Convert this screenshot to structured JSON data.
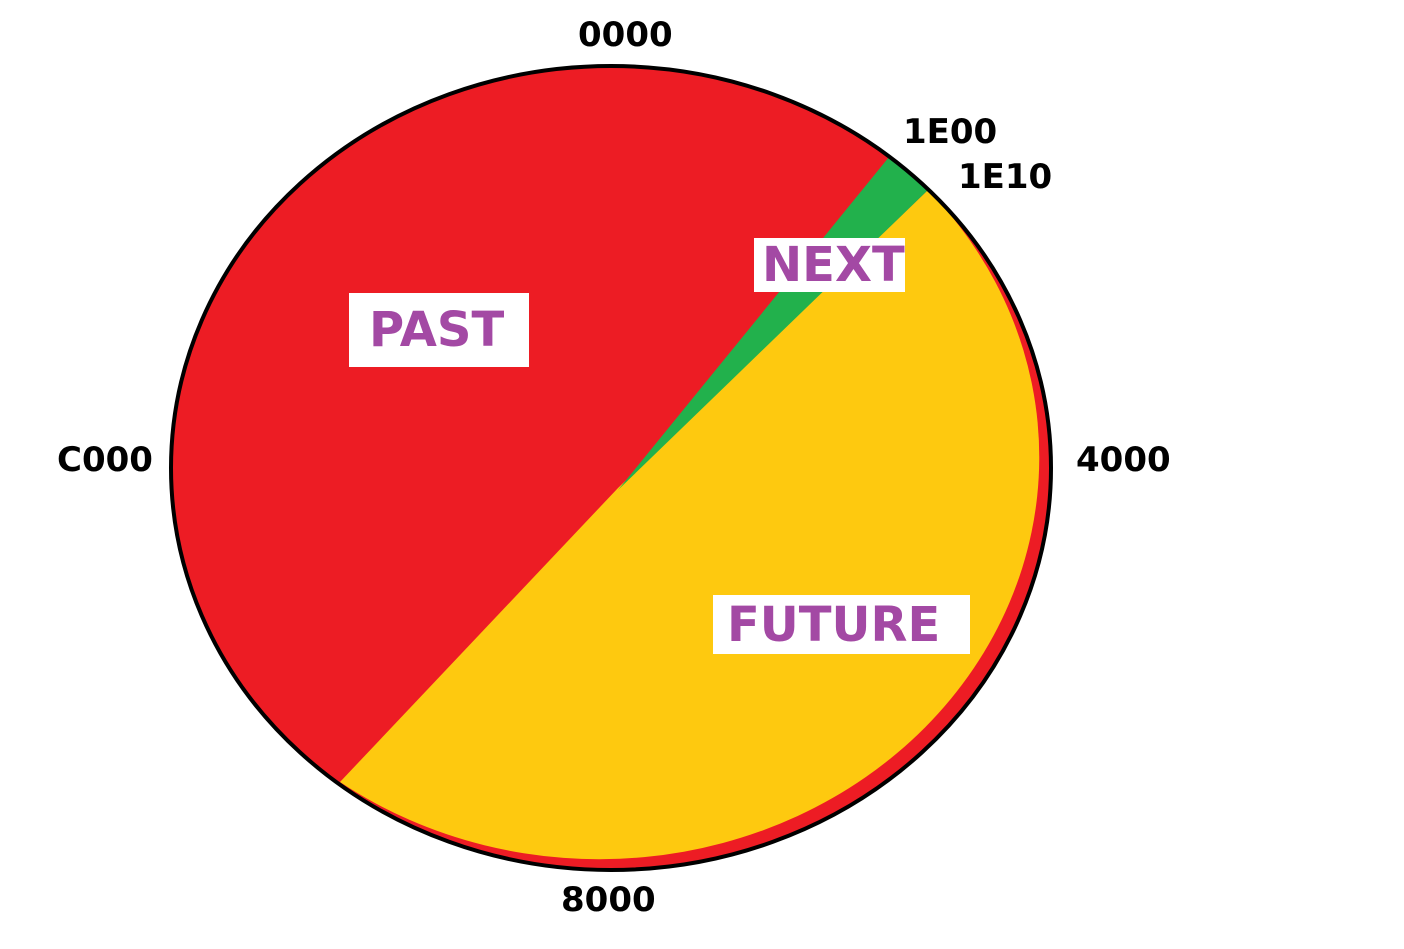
{
  "ticks": {
    "top": "0000",
    "next_start": "1E00",
    "next_end": "1E10",
    "right": "4000",
    "bottom": "8000",
    "left": "C000"
  },
  "regions": {
    "past": "PAST",
    "next": "NEXT",
    "future": "FUTURE"
  },
  "colors": {
    "past": "#ed1c24",
    "next": "#22b14c",
    "future": "#fec90f",
    "label_text": "#a349a4"
  }
}
